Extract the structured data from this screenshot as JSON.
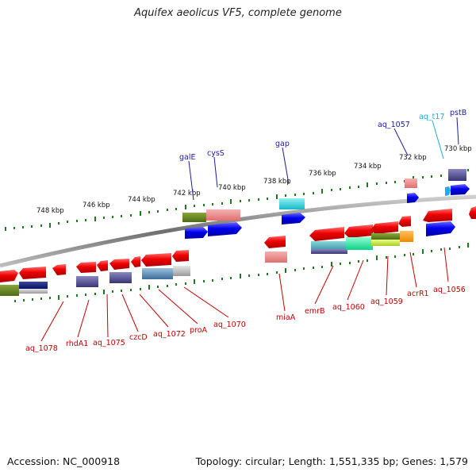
{
  "title": "Aquifex aeolicus VF5, complete genome",
  "footer": {
    "accession": "Accession: NC_000918",
    "topology": "Topology: circular; Length: 1,551,335 bp; Genes: 1,579"
  },
  "colors": {
    "backbone": "#7a7a7a",
    "tick": "#1f7a1f",
    "forward_gene": "#0000ee",
    "reverse_gene": "#ee0000",
    "label_up": "#1a1aa8",
    "label_down": "#c40000",
    "trna_label": "#22aadd"
  },
  "kbp_ticks": [
    "748 kbp",
    "746 kbp",
    "744 kbp",
    "742 kbp",
    "740 kbp",
    "738 kbp",
    "736 kbp",
    "734 kbp",
    "732 kbp",
    "730 kbp"
  ],
  "upper_labels": [
    "galE",
    "cysS",
    "gap",
    "aq_1057",
    "aq_t17",
    "pstB"
  ],
  "lower_labels": [
    "aq_1078",
    "rhdA1",
    "aq_1075",
    "czcD",
    "aq_1072",
    "proA",
    "aq_1070",
    "miaA",
    "emrB",
    "aq_1060",
    "aq_1059",
    "acrR1",
    "aq_1056"
  ]
}
